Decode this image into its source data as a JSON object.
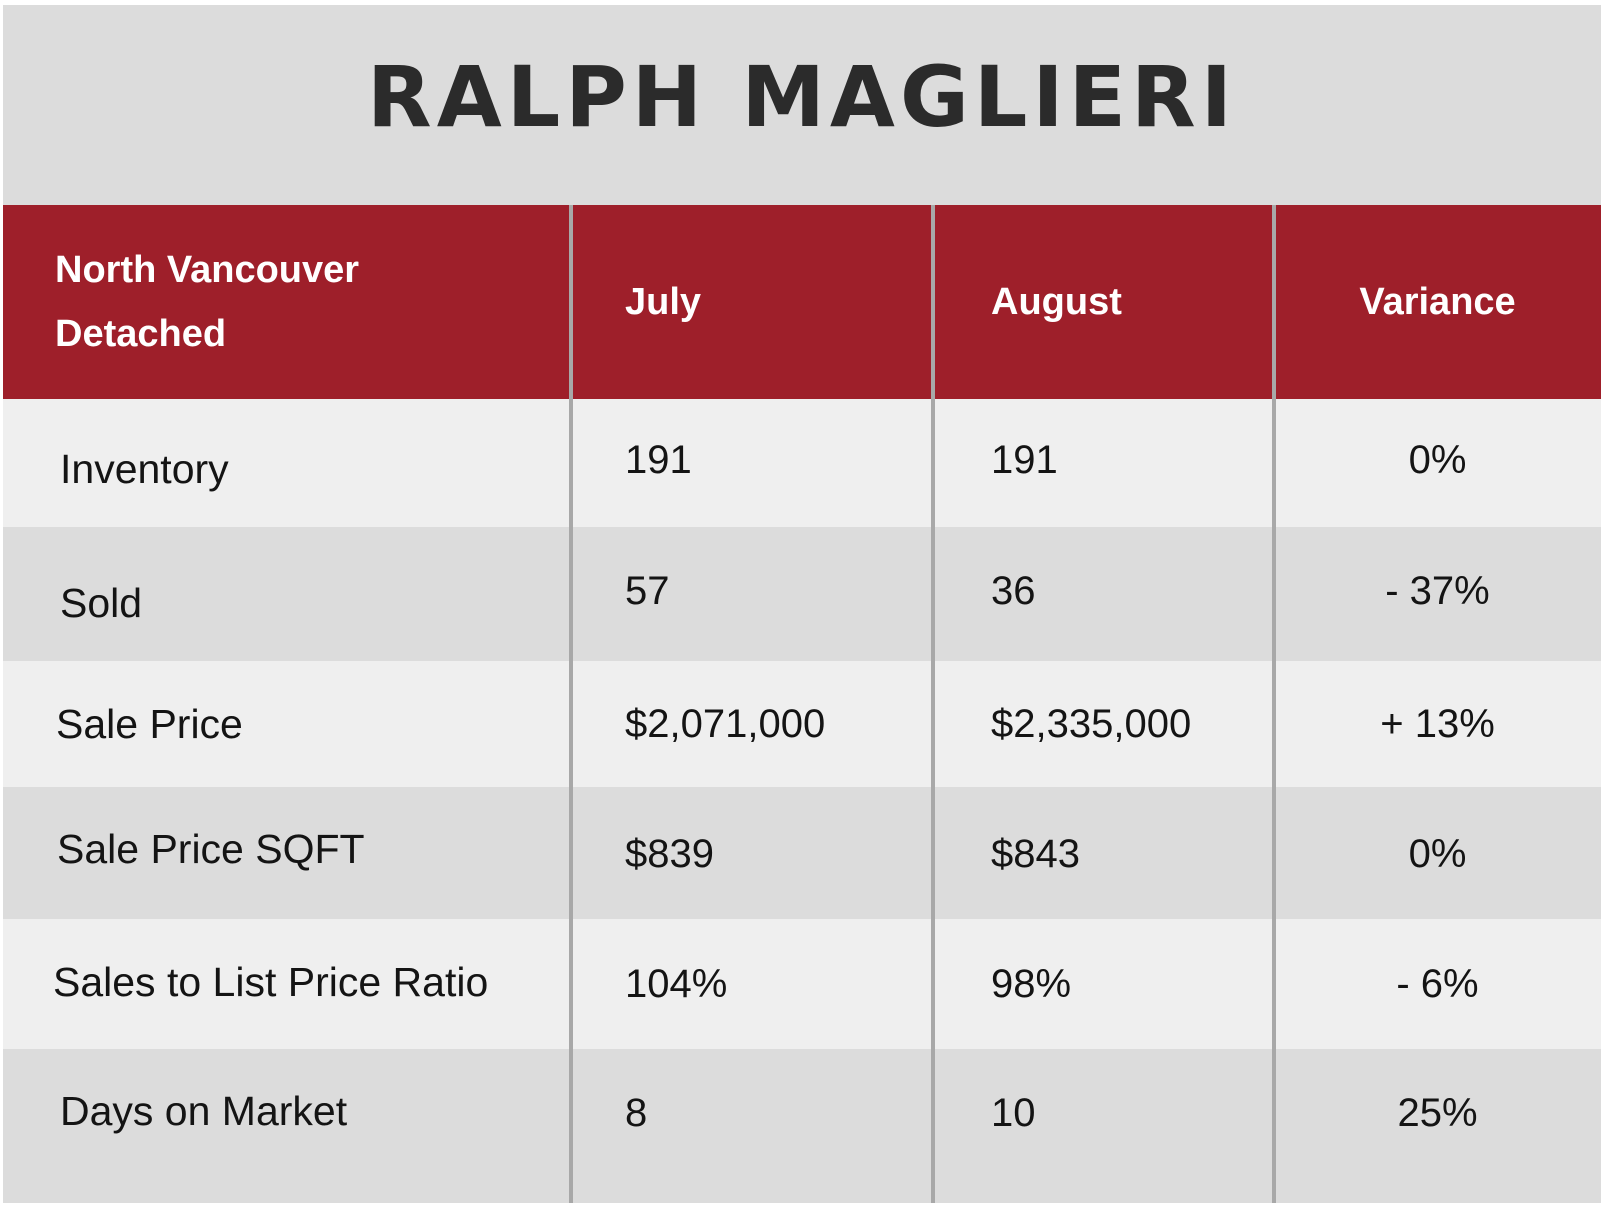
{
  "brand": {
    "name": "RALPH MAGLIERI"
  },
  "table": {
    "header": {
      "area_line1": "North Vancouver",
      "area_line2": "Detached",
      "col1": "July",
      "col2": "August",
      "col3": "Variance"
    },
    "rows": [
      {
        "label": "Inventory",
        "july": "191",
        "august": "191",
        "variance": "0%"
      },
      {
        "label": "Sold",
        "july": "57",
        "august": "36",
        "variance": "- 37%"
      },
      {
        "label": "Sale Price",
        "july": "$2,071,000",
        "august": "$2,335,000",
        "variance": "+ 13%"
      },
      {
        "label": "Sale Price SQFT",
        "july": "$839",
        "august": "$843",
        "variance": "0%"
      },
      {
        "label": "Sales to List Price Ratio",
        "july": "104%",
        "august": "98%",
        "variance": "- 6%"
      },
      {
        "label": "Days on Market",
        "july": "8",
        "august": "10",
        "variance": "25%"
      }
    ]
  },
  "colors": {
    "header_bg": "#9e1f2a",
    "row_light": "#efefef",
    "row_dark": "#dcdcdc",
    "banner_bg": "#dcdcdc",
    "divider": "#a8a8a8"
  }
}
